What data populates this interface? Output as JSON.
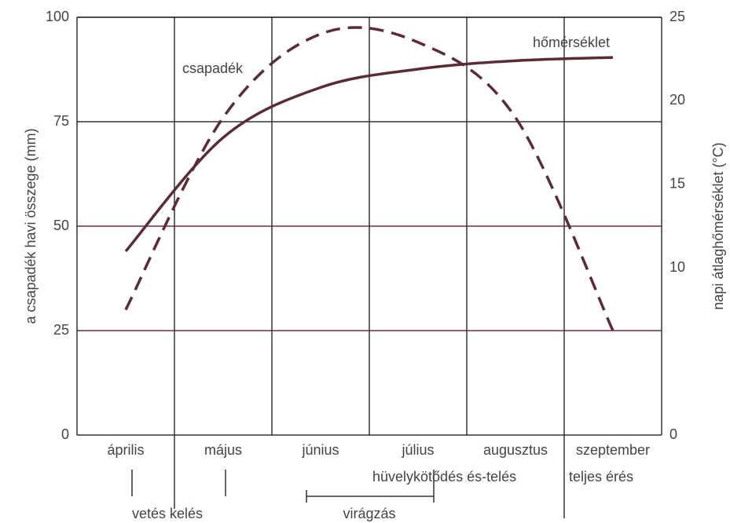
{
  "chart_data": {
    "type": "line",
    "ylabel": "a csapadék havi összege (mm)",
    "y2label": "napi átlaghőmérséklet (°C)",
    "categories": [
      "április",
      "május",
      "június",
      "július",
      "augusztus",
      "szeptember"
    ],
    "series": [
      {
        "name": "csapadék",
        "color": "#5b2b36",
        "dashed": true,
        "values": [
          30,
          76,
          96,
          94,
          76,
          25
        ]
      },
      {
        "name": "hőmérséklet",
        "color": "#5b2b36",
        "dashed": false,
        "axis": "y2",
        "values": [
          11.0,
          17.8,
          20.8,
          21.9,
          22.4,
          22.6
        ]
      }
    ],
    "ylim": [
      0,
      100
    ],
    "yticks": [
      0,
      25,
      50,
      75,
      100
    ],
    "y2lim": [
      0,
      25
    ],
    "y2ticks": [
      0,
      10,
      15,
      20,
      25
    ],
    "stages": [
      "hüvelykötődés és-telés",
      "teljes érés",
      "vetés kelés",
      "virágzás"
    ],
    "grid": true
  }
}
